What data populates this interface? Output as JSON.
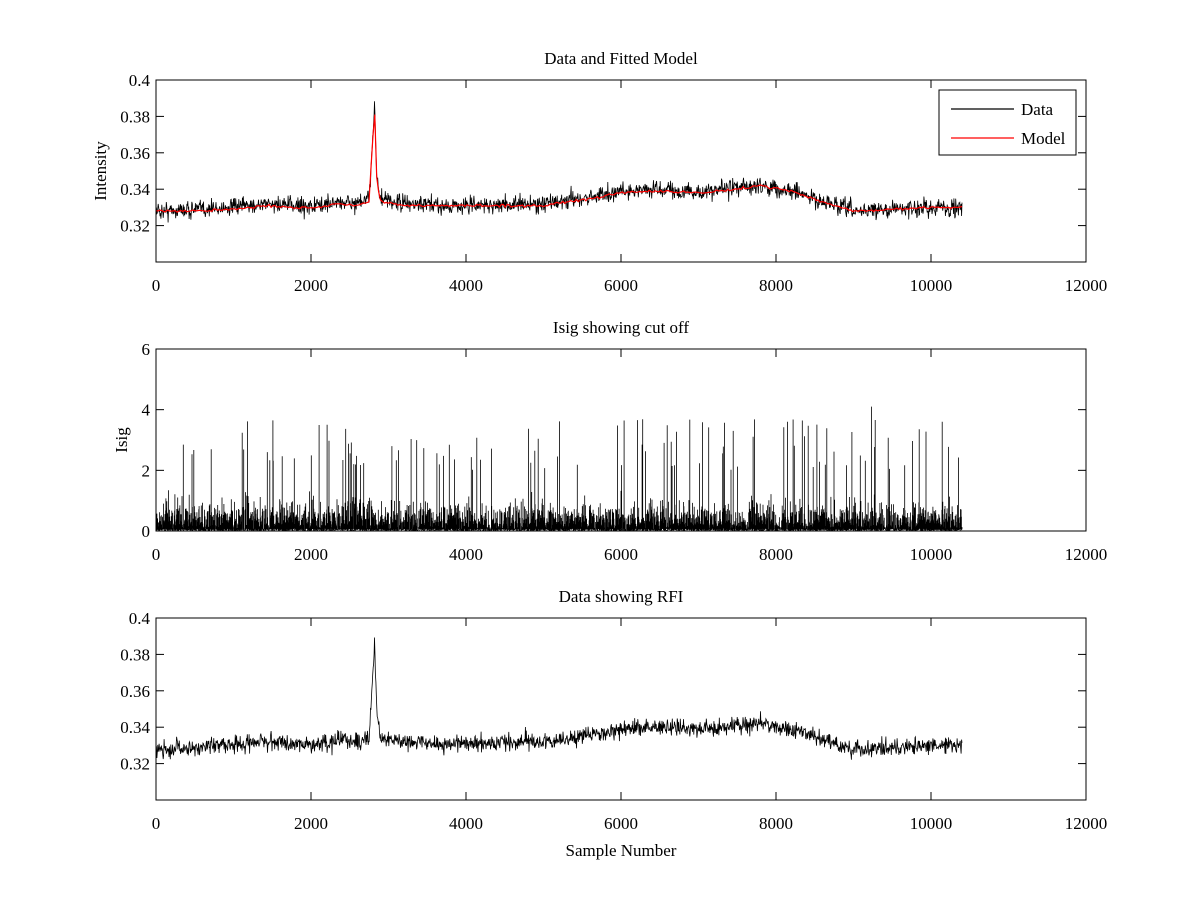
{
  "figure": {
    "background": "#ffffff"
  },
  "chart_data": [
    {
      "type": "line",
      "title": "Data and Fitted Model",
      "xlabel": "",
      "ylabel": "Intensity",
      "xlim": [
        0,
        12000
      ],
      "ylim": [
        0.3,
        0.4
      ],
      "xticks": [
        0,
        2000,
        4000,
        6000,
        8000,
        10000,
        12000
      ],
      "xtick_labels": [
        "0",
        "2000",
        "4000",
        "6000",
        "8000",
        "10000",
        "12000"
      ],
      "yticks": [
        0.32,
        0.34,
        0.36,
        0.38,
        0.4
      ],
      "ytick_labels": [
        "0.32",
        "0.34",
        "0.36",
        "0.38",
        "0.4"
      ],
      "grid": false,
      "legend": {
        "position": "top-right",
        "entries": [
          "Data",
          "Model"
        ]
      },
      "x": [
        0,
        500,
        1000,
        1400,
        1800,
        2100,
        2350,
        2600,
        2750,
        2820,
        2850,
        2900,
        3200,
        3600,
        4000,
        5000,
        5500,
        6000,
        6500,
        7000,
        7500,
        7800,
        8200,
        8600,
        9000,
        9500,
        10000,
        10400
      ],
      "series": [
        {
          "name": "Data",
          "color": "#000000",
          "noise": 0.004,
          "values": [
            0.328,
            0.329,
            0.33,
            0.332,
            0.331,
            0.331,
            0.333,
            0.332,
            0.334,
            0.388,
            0.345,
            0.334,
            0.332,
            0.331,
            0.331,
            0.332,
            0.335,
            0.339,
            0.34,
            0.338,
            0.341,
            0.342,
            0.339,
            0.333,
            0.328,
            0.329,
            0.33,
            0.33
          ]
        },
        {
          "name": "Model",
          "color": "#ff0000",
          "values": [
            0.328,
            0.328,
            0.329,
            0.331,
            0.33,
            0.33,
            0.332,
            0.331,
            0.333,
            0.385,
            0.343,
            0.333,
            0.331,
            0.331,
            0.331,
            0.331,
            0.334,
            0.338,
            0.339,
            0.338,
            0.34,
            0.342,
            0.339,
            0.333,
            0.328,
            0.329,
            0.33,
            0.33
          ]
        }
      ]
    },
    {
      "type": "line",
      "title": "Isig showing cut off",
      "xlabel": "",
      "ylabel": "Isig",
      "xlim": [
        0,
        12000
      ],
      "ylim": [
        0,
        6
      ],
      "xticks": [
        0,
        2000,
        4000,
        6000,
        8000,
        10000,
        12000
      ],
      "xtick_labels": [
        "0",
        "2000",
        "4000",
        "6000",
        "8000",
        "10000",
        "12000"
      ],
      "yticks": [
        0,
        2,
        4,
        6
      ],
      "ytick_labels": [
        "0",
        "2",
        "4",
        "6"
      ],
      "grid": false,
      "x_range": [
        0,
        10400
      ],
      "series": [
        {
          "name": "",
          "color": "#000000",
          "typical_max": 2.0,
          "peak_max": 4.1
        }
      ]
    },
    {
      "type": "line",
      "title": "Data showing RFI",
      "xlabel": "Sample Number",
      "ylabel": "",
      "xlim": [
        0,
        12000
      ],
      "ylim": [
        0.3,
        0.4
      ],
      "xticks": [
        0,
        2000,
        4000,
        6000,
        8000,
        10000,
        12000
      ],
      "xtick_labels": [
        "0",
        "2000",
        "4000",
        "6000",
        "8000",
        "10000",
        "12000"
      ],
      "yticks": [
        0.32,
        0.34,
        0.36,
        0.38,
        0.4
      ],
      "ytick_labels": [
        "0.32",
        "0.34",
        "0.36",
        "0.38",
        "0.4"
      ],
      "grid": false,
      "x": [
        0,
        500,
        1000,
        1400,
        1800,
        2100,
        2350,
        2600,
        2750,
        2820,
        2850,
        2900,
        3200,
        3600,
        4000,
        5000,
        5500,
        6000,
        6500,
        7000,
        7500,
        7800,
        8200,
        8600,
        9000,
        9500,
        10000,
        10400
      ],
      "series": [
        {
          "name": "",
          "color": "#000000",
          "noise": 0.004,
          "values": [
            0.328,
            0.329,
            0.33,
            0.332,
            0.331,
            0.331,
            0.333,
            0.332,
            0.334,
            0.388,
            0.345,
            0.334,
            0.332,
            0.331,
            0.331,
            0.332,
            0.335,
            0.339,
            0.34,
            0.338,
            0.341,
            0.342,
            0.339,
            0.333,
            0.328,
            0.329,
            0.33,
            0.33
          ]
        }
      ]
    }
  ]
}
